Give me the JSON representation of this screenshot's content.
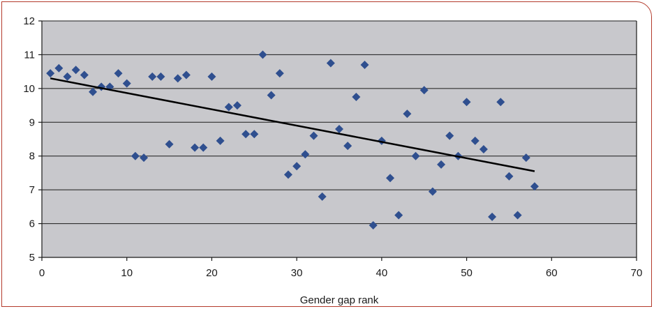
{
  "chart_data": {
    "type": "scatter",
    "title": "",
    "xlabel": "Gender gap rank",
    "ylabel": "",
    "xlim": [
      0,
      70
    ],
    "ylim": [
      5,
      12
    ],
    "xticks": [
      0,
      10,
      20,
      30,
      40,
      50,
      60,
      70
    ],
    "yticks": [
      5,
      6,
      7,
      8,
      9,
      10,
      11,
      12
    ],
    "grid": "horizontal",
    "plot_background": "#c8c8cc",
    "marker_color": "#2f4f8f",
    "trendline": {
      "x": [
        1,
        58
      ],
      "y": [
        10.3,
        7.55
      ],
      "color": "#000000"
    },
    "points": [
      [
        1,
        10.45
      ],
      [
        2,
        10.6
      ],
      [
        3,
        10.35
      ],
      [
        4,
        10.55
      ],
      [
        5,
        10.4
      ],
      [
        6,
        9.9
      ],
      [
        7,
        10.05
      ],
      [
        8,
        10.05
      ],
      [
        9,
        10.45
      ],
      [
        10,
        10.15
      ],
      [
        11,
        8.0
      ],
      [
        12,
        7.95
      ],
      [
        13,
        10.35
      ],
      [
        14,
        10.35
      ],
      [
        15,
        8.35
      ],
      [
        16,
        10.3
      ],
      [
        17,
        10.4
      ],
      [
        18,
        8.25
      ],
      [
        19,
        8.25
      ],
      [
        20,
        10.35
      ],
      [
        21,
        8.45
      ],
      [
        22,
        9.45
      ],
      [
        23,
        9.5
      ],
      [
        24,
        8.65
      ],
      [
        25,
        8.65
      ],
      [
        26,
        11.0
      ],
      [
        27,
        9.8
      ],
      [
        28,
        10.45
      ],
      [
        29,
        7.45
      ],
      [
        30,
        7.7
      ],
      [
        31,
        8.05
      ],
      [
        32,
        8.6
      ],
      [
        33,
        6.8
      ],
      [
        34,
        10.75
      ],
      [
        35,
        8.8
      ],
      [
        36,
        8.3
      ],
      [
        37,
        9.75
      ],
      [
        38,
        10.7
      ],
      [
        39,
        5.95
      ],
      [
        40,
        8.45
      ],
      [
        41,
        7.35
      ],
      [
        42,
        6.25
      ],
      [
        43,
        9.25
      ],
      [
        44,
        8.0
      ],
      [
        45,
        9.95
      ],
      [
        46,
        6.95
      ],
      [
        47,
        7.75
      ],
      [
        48,
        8.6
      ],
      [
        49,
        8.0
      ],
      [
        50,
        9.6
      ],
      [
        51,
        8.45
      ],
      [
        52,
        8.2
      ],
      [
        53,
        6.2
      ],
      [
        54,
        9.6
      ],
      [
        55,
        7.4
      ],
      [
        56,
        6.25
      ],
      [
        57,
        7.95
      ],
      [
        58,
        7.1
      ]
    ]
  }
}
